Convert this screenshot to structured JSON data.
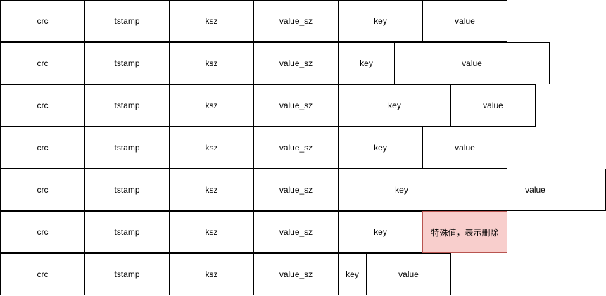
{
  "diagram": {
    "records": [
      {
        "fields": [
          {
            "label": "crc",
            "kind": "crc"
          },
          {
            "label": "tstamp",
            "kind": "tstamp"
          },
          {
            "label": "ksz",
            "kind": "ksz"
          },
          {
            "label": "value_sz",
            "kind": "value_sz"
          },
          {
            "label": "key",
            "kind": "key"
          },
          {
            "label": "value",
            "kind": "value"
          }
        ]
      },
      {
        "fields": [
          {
            "label": "crc",
            "kind": "crc"
          },
          {
            "label": "tstamp",
            "kind": "tstamp"
          },
          {
            "label": "ksz",
            "kind": "ksz"
          },
          {
            "label": "value_sz",
            "kind": "value_sz"
          },
          {
            "label": "key",
            "kind": "key"
          },
          {
            "label": "value",
            "kind": "value"
          }
        ]
      },
      {
        "fields": [
          {
            "label": "crc",
            "kind": "crc"
          },
          {
            "label": "tstamp",
            "kind": "tstamp"
          },
          {
            "label": "ksz",
            "kind": "ksz"
          },
          {
            "label": "value_sz",
            "kind": "value_sz"
          },
          {
            "label": "key",
            "kind": "key"
          },
          {
            "label": "value",
            "kind": "value"
          }
        ]
      },
      {
        "fields": [
          {
            "label": "crc",
            "kind": "crc"
          },
          {
            "label": "tstamp",
            "kind": "tstamp"
          },
          {
            "label": "ksz",
            "kind": "ksz"
          },
          {
            "label": "value_sz",
            "kind": "value_sz"
          },
          {
            "label": "key",
            "kind": "key"
          },
          {
            "label": "value",
            "kind": "value"
          }
        ]
      },
      {
        "fields": [
          {
            "label": "crc",
            "kind": "crc"
          },
          {
            "label": "tstamp",
            "kind": "tstamp"
          },
          {
            "label": "ksz",
            "kind": "ksz"
          },
          {
            "label": "value_sz",
            "kind": "value_sz"
          },
          {
            "label": "key",
            "kind": "key"
          },
          {
            "label": "value",
            "kind": "value"
          }
        ]
      },
      {
        "fields": [
          {
            "label": "crc",
            "kind": "crc"
          },
          {
            "label": "tstamp",
            "kind": "tstamp"
          },
          {
            "label": "ksz",
            "kind": "ksz"
          },
          {
            "label": "value_sz",
            "kind": "value_sz"
          },
          {
            "label": "key",
            "kind": "key"
          },
          {
            "label": "特殊值，表示删除",
            "kind": "tombstone",
            "highlight": true
          }
        ]
      },
      {
        "fields": [
          {
            "label": "crc",
            "kind": "crc"
          },
          {
            "label": "tstamp",
            "kind": "tstamp"
          },
          {
            "label": "ksz",
            "kind": "ksz"
          },
          {
            "label": "value_sz",
            "kind": "value_sz"
          },
          {
            "label": "key",
            "kind": "key"
          },
          {
            "label": "value",
            "kind": "value"
          }
        ]
      }
    ],
    "colors": {
      "border": "#000000",
      "fill": "#ffffff",
      "tombstone_fill": "#f8cecc",
      "tombstone_border": "#b85450"
    }
  }
}
